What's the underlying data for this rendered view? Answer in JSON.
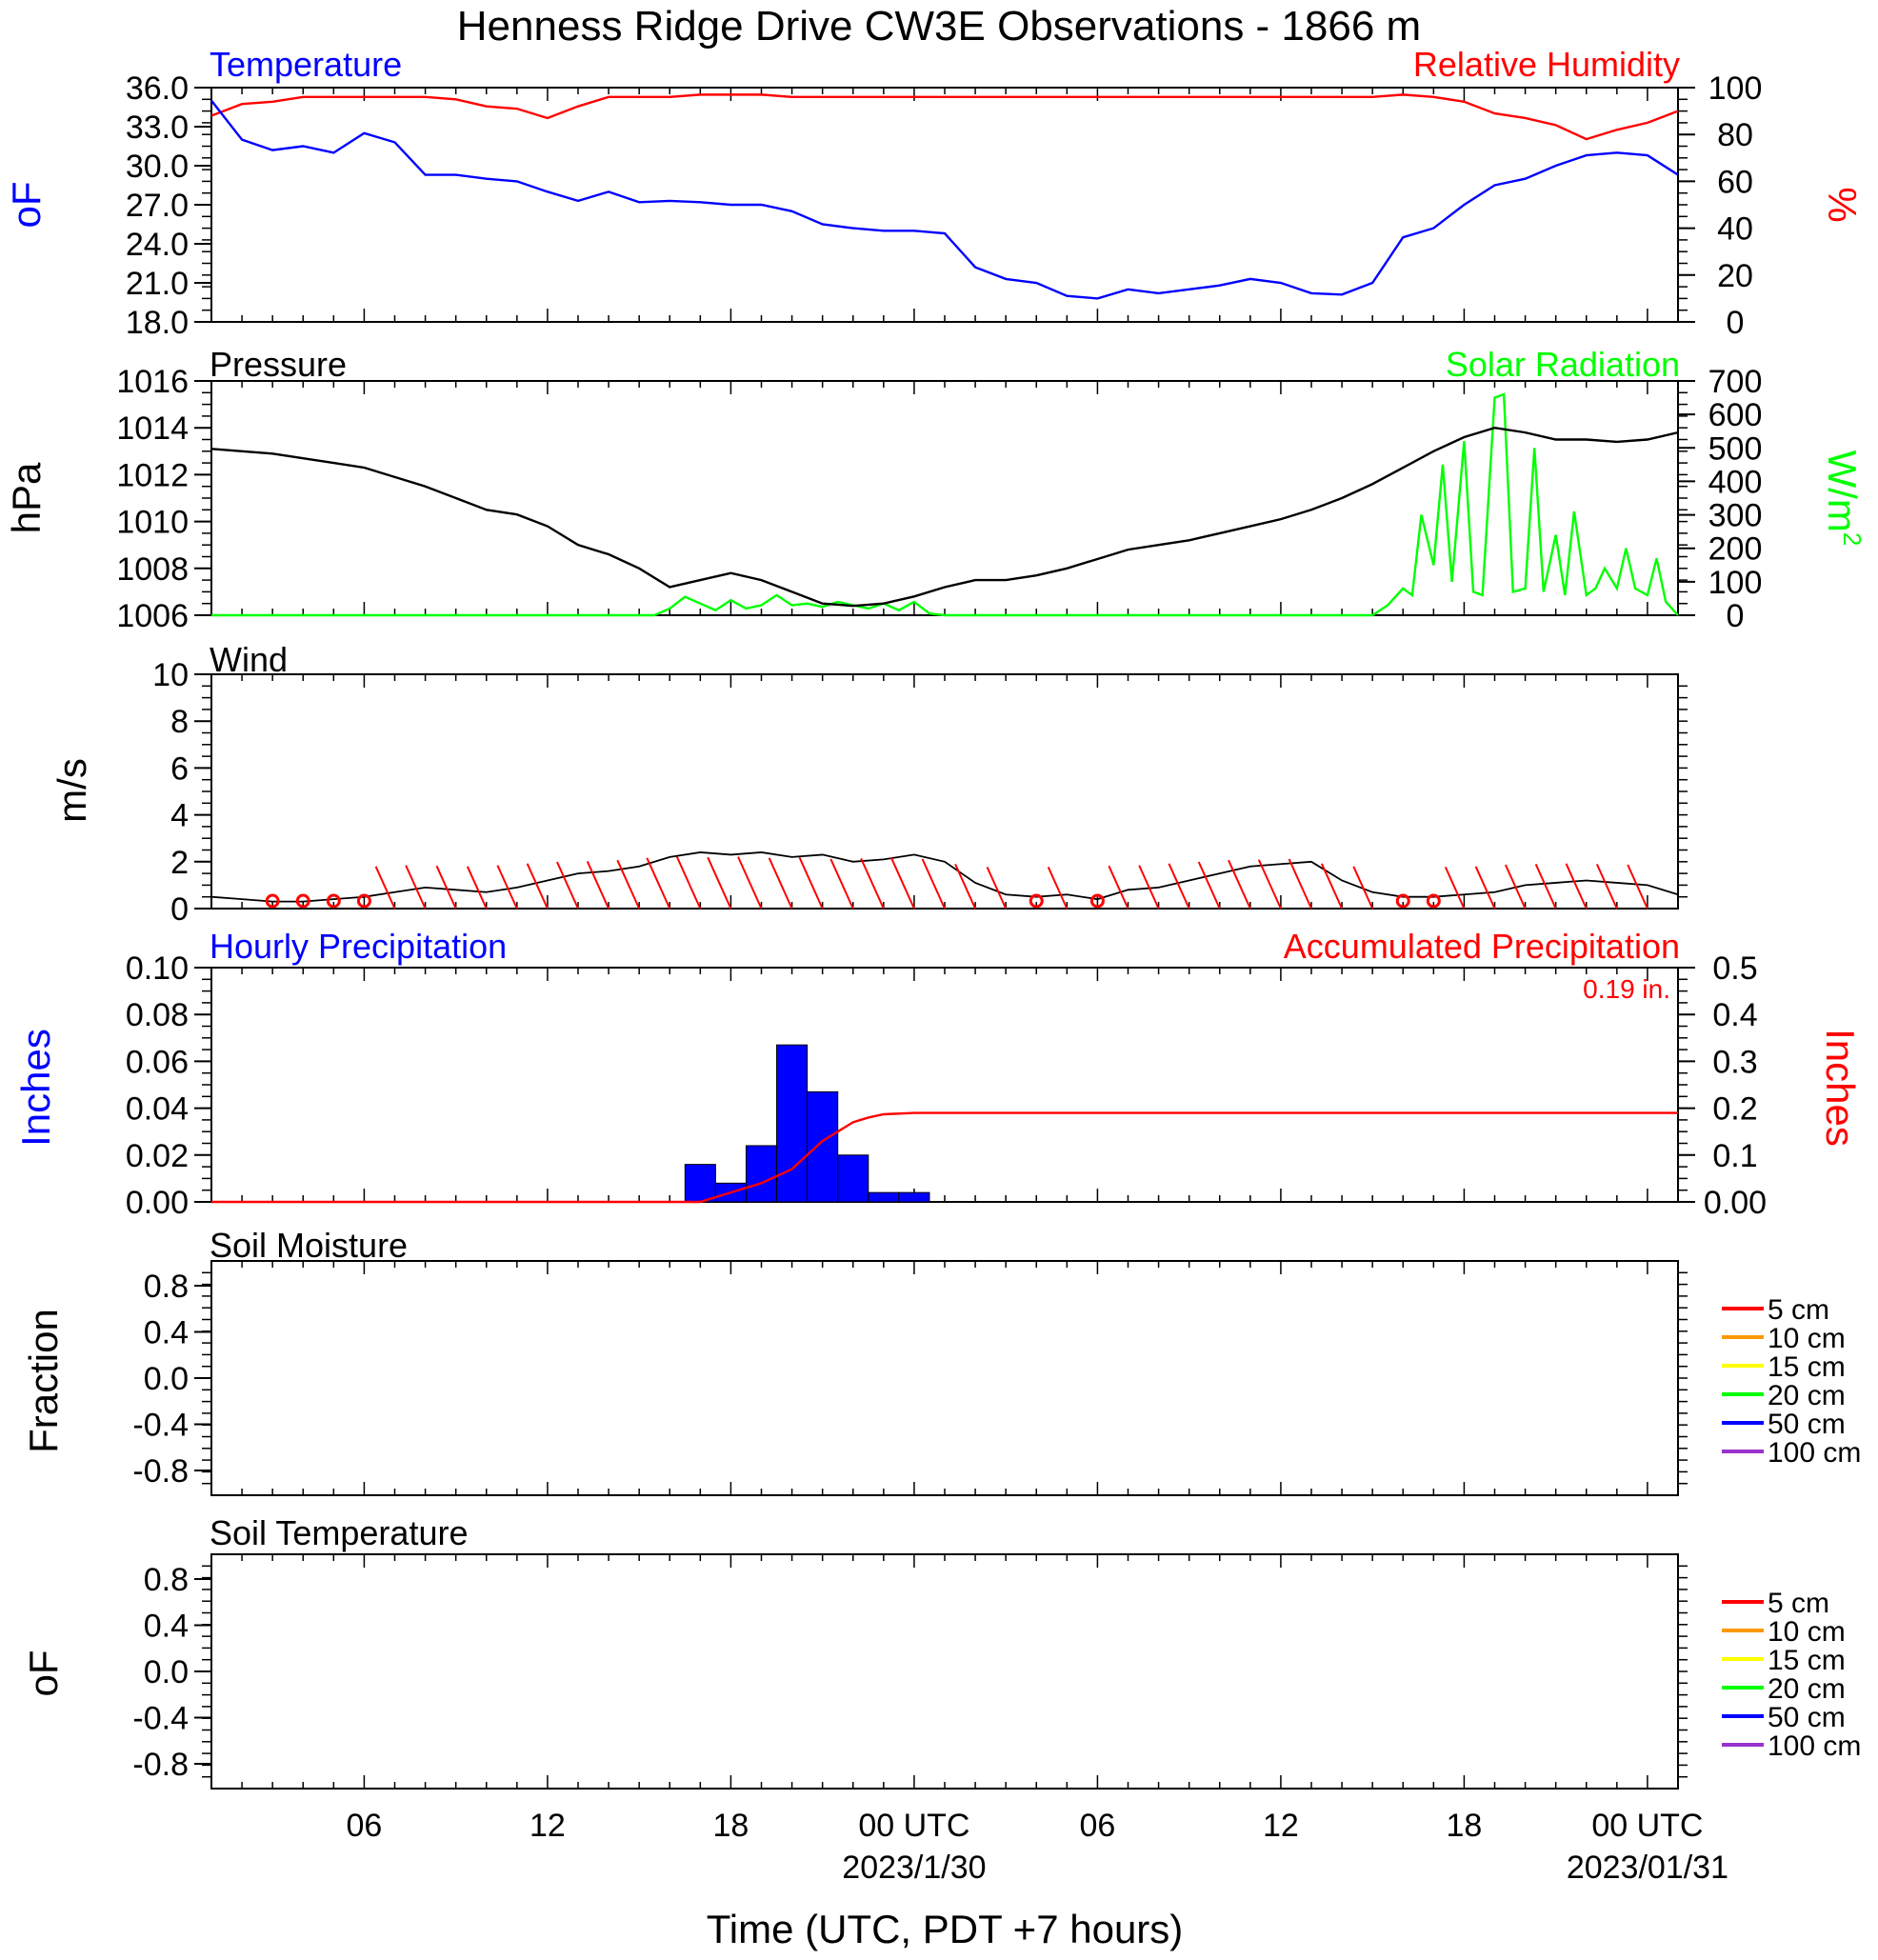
{
  "title": "Henness Ridge Drive CW3E Observations - 1866 m",
  "xaxis": {
    "title": "Time (UTC, PDT +7 hours)",
    "tick_labels": [
      "06",
      "12",
      "18",
      "00 UTC",
      "06",
      "12",
      "18",
      "00 UTC"
    ],
    "date_labels": [
      "2023/1/30",
      "2023/01/31"
    ]
  },
  "colors": {
    "temperature": "#0000ff",
    "humidity": "#ff0000",
    "pressure": "#000000",
    "solar": "#00ff00",
    "wind": "#000000",
    "wind_barb": "#ff0000",
    "precip_bar": "#0000ff",
    "precip_accum": "#ff0000"
  },
  "panels": {
    "temperature": {
      "left_label": "Temperature",
      "right_label": "Relative Humidity",
      "left_unit": "oF",
      "right_unit": "%",
      "left_ticks": [
        "36.0",
        "33.0",
        "30.0",
        "27.0",
        "24.0",
        "21.0",
        "18.0"
      ],
      "right_ticks": [
        "100",
        "80",
        "60",
        "40",
        "20",
        "0"
      ]
    },
    "pressure": {
      "left_label": "Pressure",
      "right_label": "Solar Radiation",
      "left_unit": "hPa",
      "right_unit": "W/m2",
      "left_ticks": [
        "1016",
        "1014",
        "1012",
        "1010",
        "1008",
        "1006"
      ],
      "right_ticks": [
        "700",
        "600",
        "500",
        "400",
        "300",
        "200",
        "100",
        "0"
      ]
    },
    "wind": {
      "left_label": "Wind",
      "left_unit": "m/s",
      "left_ticks": [
        "10",
        "8",
        "6",
        "4",
        "2",
        "0"
      ]
    },
    "precip": {
      "left_label": "Hourly Precipitation",
      "right_label": "Accumulated Precipitation",
      "total_label": "0.19 in.",
      "left_unit": "Inches",
      "right_unit": "Inches",
      "left_ticks": [
        "0.10",
        "0.08",
        "0.06",
        "0.04",
        "0.02",
        "0.00"
      ],
      "right_ticks": [
        "0.5",
        "0.4",
        "0.3",
        "0.2",
        "0.1",
        "0.00"
      ]
    },
    "soil_moisture": {
      "left_label": "Soil Moisture",
      "left_unit": "Fraction",
      "left_ticks": [
        "0.8",
        "0.4",
        "0.0",
        "-0.4",
        "-0.8"
      ],
      "legend": [
        {
          "label": "5 cm",
          "color": "#ff0000"
        },
        {
          "label": "10 cm",
          "color": "#ff9900"
        },
        {
          "label": "15 cm",
          "color": "#ffff00"
        },
        {
          "label": "20 cm",
          "color": "#00ff00"
        },
        {
          "label": "50 cm",
          "color": "#0000ff"
        },
        {
          "label": "100 cm",
          "color": "#9933cc"
        }
      ]
    },
    "soil_temperature": {
      "left_label": "Soil Temperature",
      "left_unit": "oF",
      "left_ticks": [
        "0.8",
        "0.4",
        "0.0",
        "-0.4",
        "-0.8"
      ],
      "legend": [
        {
          "label": "5 cm",
          "color": "#ff0000"
        },
        {
          "label": "10 cm",
          "color": "#ff9900"
        },
        {
          "label": "15 cm",
          "color": "#ffff00"
        },
        {
          "label": "20 cm",
          "color": "#00ff00"
        },
        {
          "label": "50 cm",
          "color": "#0000ff"
        },
        {
          "label": "100 cm",
          "color": "#9933cc"
        }
      ]
    }
  },
  "chart_data": [
    {
      "type": "line",
      "title": "Temperature / Relative Humidity",
      "x_unit": "hours since 2023-01-29 01 UTC",
      "xlim": [
        0,
        48
      ],
      "series": [
        {
          "name": "Temperature",
          "unit": "oF",
          "ylim": [
            18,
            36
          ],
          "x": [
            0,
            1,
            2,
            3,
            4,
            5,
            6,
            7,
            8,
            9,
            10,
            11,
            12,
            13,
            14,
            15,
            16,
            17,
            18,
            19,
            20,
            21,
            22,
            23,
            24,
            25,
            26,
            27,
            28,
            29,
            30,
            31,
            32,
            33,
            34,
            35,
            36,
            37,
            38,
            39,
            40,
            41,
            42,
            43,
            44,
            45,
            46,
            47,
            48
          ],
          "y": [
            35.0,
            32.0,
            31.2,
            31.5,
            31.0,
            32.5,
            31.8,
            29.3,
            29.3,
            29.0,
            28.8,
            28.0,
            27.3,
            28.0,
            27.2,
            27.3,
            27.2,
            27.0,
            27.0,
            26.5,
            25.5,
            25.2,
            25.0,
            25.0,
            24.8,
            22.2,
            21.3,
            21.0,
            20.0,
            19.8,
            20.5,
            20.2,
            20.5,
            20.8,
            21.3,
            21.0,
            20.2,
            20.1,
            21.0,
            24.5,
            25.2,
            27.0,
            28.5,
            29.0,
            30.0,
            30.8,
            31.0,
            30.8,
            29.3
          ]
        },
        {
          "name": "Relative Humidity",
          "unit": "%",
          "ylim": [
            0,
            100
          ],
          "x": [
            0,
            1,
            2,
            3,
            4,
            5,
            6,
            7,
            8,
            9,
            10,
            11,
            12,
            13,
            14,
            15,
            16,
            17,
            18,
            19,
            20,
            21,
            22,
            23,
            24,
            25,
            26,
            27,
            28,
            29,
            30,
            31,
            32,
            33,
            34,
            35,
            36,
            37,
            38,
            39,
            40,
            41,
            42,
            43,
            44,
            45,
            46,
            47,
            48
          ],
          "y": [
            88,
            93,
            94,
            96,
            96,
            96,
            96,
            96,
            95,
            92,
            91,
            87,
            92,
            96,
            96,
            96,
            97,
            97,
            97,
            96,
            96,
            96,
            96,
            96,
            96,
            96,
            96,
            96,
            96,
            96,
            96,
            96,
            96,
            96,
            96,
            96,
            96,
            96,
            96,
            97,
            96,
            94,
            89,
            87,
            84,
            78,
            82,
            85,
            90
          ]
        }
      ]
    },
    {
      "type": "line",
      "title": "Pressure / Solar Radiation",
      "x_unit": "hours since 2023-01-29 01 UTC",
      "xlim": [
        0,
        48
      ],
      "series": [
        {
          "name": "Pressure",
          "unit": "hPa",
          "ylim": [
            1006,
            1016
          ],
          "x": [
            0,
            1,
            2,
            3,
            4,
            5,
            6,
            7,
            8,
            9,
            10,
            11,
            12,
            13,
            14,
            15,
            16,
            17,
            18,
            19,
            20,
            21,
            22,
            23,
            24,
            25,
            26,
            27,
            28,
            29,
            30,
            31,
            32,
            33,
            34,
            35,
            36,
            37,
            38,
            39,
            40,
            41,
            42,
            43,
            44,
            45,
            46,
            47,
            48
          ],
          "y": [
            1013.1,
            1013.0,
            1012.9,
            1012.7,
            1012.5,
            1012.3,
            1011.9,
            1011.5,
            1011.0,
            1010.5,
            1010.3,
            1009.8,
            1009.0,
            1008.6,
            1008.0,
            1007.2,
            1007.5,
            1007.8,
            1007.5,
            1007.0,
            1006.5,
            1006.4,
            1006.5,
            1006.8,
            1007.2,
            1007.5,
            1007.5,
            1007.7,
            1008.0,
            1008.4,
            1008.8,
            1009.0,
            1009.2,
            1009.5,
            1009.8,
            1010.1,
            1010.5,
            1011.0,
            1011.6,
            1012.3,
            1013.0,
            1013.6,
            1014.0,
            1013.8,
            1013.5,
            1013.5,
            1013.4,
            1013.5,
            1013.8
          ]
        },
        {
          "name": "Solar Radiation",
          "unit": "W/m2",
          "ylim": [
            0,
            700
          ],
          "x": [
            0,
            14.5,
            15.0,
            15.5,
            16.0,
            16.5,
            17.0,
            17.5,
            18.0,
            18.5,
            19.0,
            19.5,
            20.0,
            20.5,
            21.0,
            21.5,
            22.0,
            22.5,
            23.0,
            23.5,
            24.0,
            38.0,
            38.5,
            39.0,
            39.3,
            39.6,
            40.0,
            40.3,
            40.6,
            41.0,
            41.3,
            41.6,
            42.0,
            42.3,
            42.6,
            43.0,
            43.3,
            43.6,
            44.0,
            44.3,
            44.6,
            45.0,
            45.3,
            45.6,
            46.0,
            46.3,
            46.6,
            47.0,
            47.3,
            47.6,
            48.0
          ],
          "y": [
            0,
            0,
            20,
            55,
            35,
            15,
            45,
            20,
            30,
            60,
            30,
            35,
            25,
            40,
            30,
            20,
            35,
            15,
            40,
            5,
            0,
            0,
            30,
            80,
            60,
            300,
            150,
            450,
            100,
            520,
            70,
            60,
            650,
            660,
            70,
            80,
            500,
            70,
            240,
            60,
            310,
            60,
            80,
            140,
            80,
            200,
            80,
            60,
            170,
            40,
            0
          ]
        }
      ]
    },
    {
      "type": "line",
      "title": "Wind",
      "x_unit": "hours since 2023-01-29 01 UTC",
      "xlim": [
        0,
        48
      ],
      "ylim": [
        0,
        10
      ],
      "series": [
        {
          "name": "Wind Speed",
          "unit": "m/s",
          "x": [
            0,
            1,
            2,
            3,
            4,
            5,
            6,
            7,
            8,
            9,
            10,
            11,
            12,
            13,
            14,
            15,
            16,
            17,
            18,
            19,
            20,
            21,
            22,
            23,
            24,
            25,
            26,
            27,
            28,
            29,
            30,
            31,
            32,
            33,
            34,
            35,
            36,
            37,
            38,
            39,
            40,
            41,
            42,
            43,
            44,
            45,
            46,
            47,
            48
          ],
          "y": [
            0.5,
            0.4,
            0.3,
            0.3,
            0.4,
            0.5,
            0.7,
            0.9,
            0.8,
            0.7,
            0.9,
            1.2,
            1.5,
            1.6,
            1.8,
            2.2,
            2.4,
            2.3,
            2.4,
            2.2,
            2.3,
            2.0,
            2.1,
            2.3,
            2.0,
            1.1,
            0.6,
            0.5,
            0.6,
            0.4,
            0.8,
            0.9,
            1.2,
            1.5,
            1.8,
            1.9,
            2.0,
            1.2,
            0.7,
            0.5,
            0.5,
            0.6,
            0.7,
            1.0,
            1.1,
            1.2,
            1.1,
            1.0,
            0.6
          ]
        }
      ]
    },
    {
      "type": "bar",
      "title": "Hourly / Accumulated Precipitation",
      "x_unit": "hours since 2023-01-29 01 UTC",
      "xlim": [
        0,
        48
      ],
      "series": [
        {
          "name": "Hourly Precipitation",
          "unit": "Inches",
          "ylim": [
            0,
            0.1
          ],
          "x": [
            16,
            17,
            18,
            19,
            20,
            21,
            22,
            23
          ],
          "y": [
            0.016,
            0.008,
            0.024,
            0.067,
            0.047,
            0.02,
            0.004,
            0.004
          ]
        },
        {
          "name": "Accumulated Precipitation",
          "unit": "Inches",
          "ylim": [
            0,
            0.5
          ],
          "x": [
            0,
            16,
            16.5,
            17,
            18,
            19,
            19.5,
            20,
            20.5,
            21,
            21.5,
            22,
            23,
            24,
            48
          ],
          "y": [
            0,
            0,
            0.01,
            0.02,
            0.04,
            0.07,
            0.1,
            0.13,
            0.15,
            0.17,
            0.18,
            0.187,
            0.19,
            0.19,
            0.19
          ]
        }
      ]
    }
  ]
}
